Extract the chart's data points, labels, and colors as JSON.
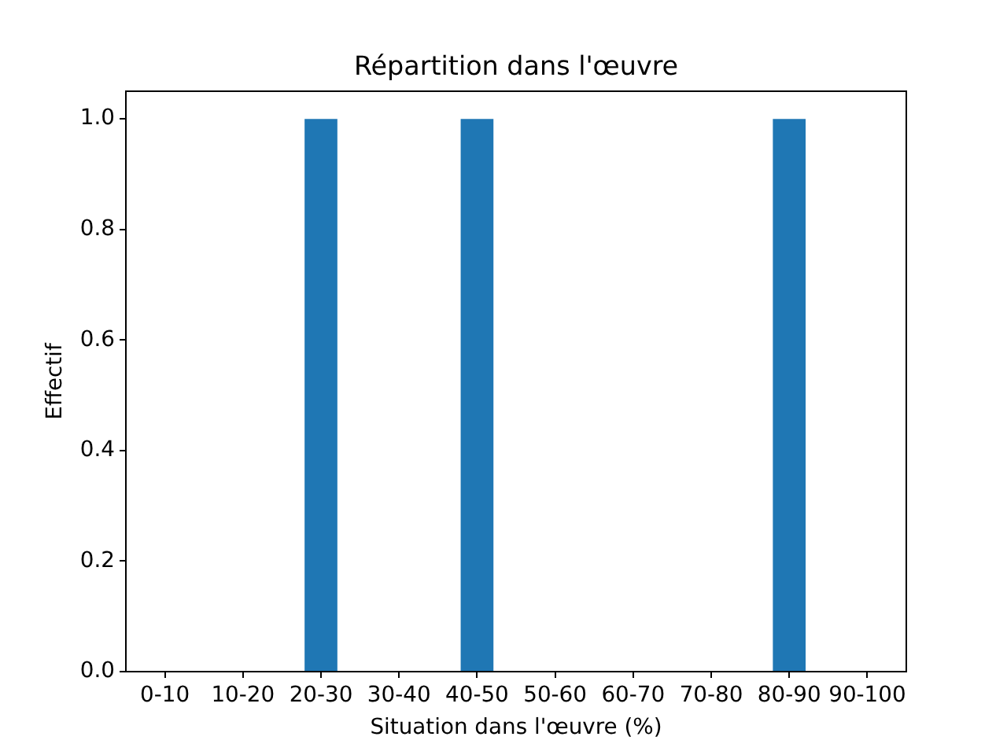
{
  "chart_data": {
    "type": "bar",
    "title": "Répartition dans l'œuvre",
    "xlabel": "Situation dans l'œuvre (%)",
    "ylabel": "Effectif",
    "categories": [
      "0-10",
      "10-20",
      "20-30",
      "30-40",
      "40-50",
      "50-60",
      "60-70",
      "70-80",
      "80-90",
      "90-100"
    ],
    "values": [
      0,
      0,
      1,
      0,
      1,
      0,
      0,
      0,
      1,
      0
    ],
    "color": "#1f77b4",
    "ylim": [
      0,
      1.05
    ],
    "yticks": [
      {
        "value": 0,
        "label": "0.0"
      },
      {
        "value": 0.2,
        "label": "0.2"
      },
      {
        "value": 0.4,
        "label": "0.4"
      },
      {
        "value": 0.6,
        "label": "0.6"
      },
      {
        "value": 0.8,
        "label": "0.8"
      },
      {
        "value": 1,
        "label": "1.0"
      }
    ],
    "grid": false
  }
}
